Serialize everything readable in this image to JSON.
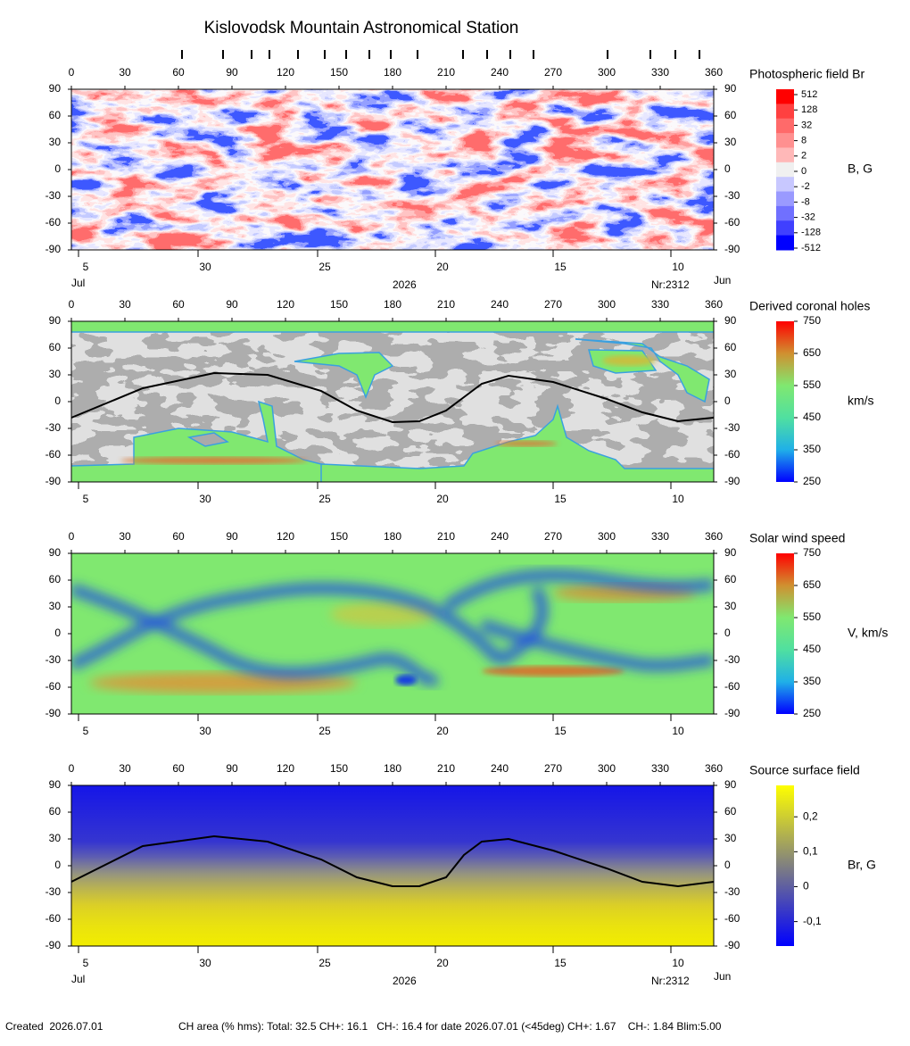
{
  "header": {
    "title": "Kislovodsk Mountain Astronomical Station"
  },
  "chart_data": [
    {
      "type": "heatmap",
      "title": "Photospheric field Br",
      "xlim": [
        0,
        360
      ],
      "xticks": [
        0,
        30,
        60,
        90,
        120,
        150,
        180,
        210,
        240,
        270,
        300,
        330,
        360
      ],
      "ylim": [
        -90,
        90
      ],
      "yticks": [
        90,
        60,
        30,
        0,
        -30,
        -60,
        -90
      ],
      "observation_ticks": [
        62,
        85,
        101,
        111,
        127,
        142,
        154,
        167,
        179,
        194,
        219.5,
        233,
        246,
        259,
        300.5,
        324.5,
        338.5,
        352
      ],
      "date_ticks": [
        {
          "value": 4,
          "label": "5"
        },
        {
          "value": 71,
          "label": "30"
        },
        {
          "value": 138,
          "label": "25"
        },
        {
          "value": 204,
          "label": "20"
        },
        {
          "value": 270,
          "label": "15"
        },
        {
          "value": 336,
          "label": "10"
        }
      ],
      "month_start": "Jul",
      "year": "2026",
      "rotation": "Nr:2312",
      "month_end": "Jun",
      "colorbar": {
        "label": "B, G",
        "levels": [
          512,
          128,
          32,
          8,
          2,
          0,
          -2,
          -8,
          -32,
          -128,
          -512
        ],
        "colors": [
          "#ff0000",
          "#ff4040",
          "#ff6a6a",
          "#ff9090",
          "#ffb8b8",
          "#f0f0f0",
          "#c8c8ff",
          "#9a9aff",
          "#7070ff",
          "#4040ff",
          "#0000ff"
        ]
      }
    },
    {
      "type": "heatmap",
      "title": "Derived coronal holes",
      "xlim": [
        0,
        360
      ],
      "xticks": [
        0,
        30,
        60,
        90,
        120,
        150,
        180,
        210,
        240,
        270,
        300,
        330,
        360
      ],
      "ylim": [
        -90,
        90
      ],
      "yticks": [
        90,
        60,
        30,
        0,
        -30,
        -60,
        -90
      ],
      "date_ticks": [
        {
          "value": 4,
          "label": "5"
        },
        {
          "value": 71,
          "label": "30"
        },
        {
          "value": 138,
          "label": "25"
        },
        {
          "value": 204,
          "label": "20"
        },
        {
          "value": 270,
          "label": "15"
        },
        {
          "value": 336,
          "label": "10"
        }
      ],
      "neutral_line": {
        "x": [
          0,
          40,
          80,
          110,
          140,
          160,
          180,
          195,
          210,
          220,
          230,
          245,
          270,
          300,
          320,
          340,
          360
        ],
        "y": [
          -18,
          15,
          32,
          30,
          12,
          -10,
          -23,
          -22,
          -10,
          5,
          20,
          29,
          22,
          3,
          -12,
          -22,
          -18
        ]
      },
      "colorbar": {
        "label": "km/s",
        "zlim": [
          250,
          750
        ],
        "ticks": [
          750,
          650,
          550,
          450,
          350,
          250
        ],
        "colors": [
          "#0000ff",
          "#20b0e8",
          "#50e0a0",
          "#80e870",
          "#d09030",
          "#ff0000"
        ]
      }
    },
    {
      "type": "heatmap",
      "title": "Solar wind speed",
      "xlim": [
        0,
        360
      ],
      "xticks": [
        0,
        30,
        60,
        90,
        120,
        150,
        180,
        210,
        240,
        270,
        300,
        330,
        360
      ],
      "ylim": [
        -90,
        90
      ],
      "yticks": [
        90,
        60,
        30,
        0,
        -30,
        -60,
        -90
      ],
      "date_ticks": [
        {
          "value": 4,
          "label": "5"
        },
        {
          "value": 71,
          "label": "30"
        },
        {
          "value": 138,
          "label": "25"
        },
        {
          "value": 204,
          "label": "20"
        },
        {
          "value": 270,
          "label": "15"
        },
        {
          "value": 336,
          "label": "10"
        }
      ],
      "colorbar": {
        "label": "V, km/s",
        "zlim": [
          250,
          750
        ],
        "ticks": [
          750,
          650,
          550,
          450,
          350,
          250
        ],
        "colors": [
          "#0000ff",
          "#20b0e8",
          "#50e0a0",
          "#80e870",
          "#d09030",
          "#ff0000"
        ]
      }
    },
    {
      "type": "heatmap",
      "title": "Source surface field",
      "xlim": [
        0,
        360
      ],
      "xticks": [
        0,
        30,
        60,
        90,
        120,
        150,
        180,
        210,
        240,
        270,
        300,
        330,
        360
      ],
      "ylim": [
        -90,
        90
      ],
      "yticks": [
        90,
        60,
        30,
        0,
        -30,
        -60,
        -90
      ],
      "date_ticks": [
        {
          "value": 4,
          "label": "5"
        },
        {
          "value": 71,
          "label": "30"
        },
        {
          "value": 138,
          "label": "25"
        },
        {
          "value": 204,
          "label": "20"
        },
        {
          "value": 270,
          "label": "15"
        },
        {
          "value": 336,
          "label": "10"
        }
      ],
      "month_start": "Jul",
      "year": "2026",
      "rotation": "Nr:2312",
      "month_end": "Jun",
      "neutral_line": {
        "x": [
          0,
          40,
          80,
          110,
          140,
          160,
          180,
          195,
          210,
          220,
          230,
          245,
          270,
          300,
          320,
          340,
          360
        ],
        "y": [
          -18,
          22,
          33,
          27,
          7,
          -13,
          -23,
          -23,
          -13,
          12,
          27,
          30,
          17,
          -3,
          -18,
          -23,
          -18
        ]
      },
      "colorbar": {
        "label": "Br, G",
        "zlim": [
          -0.17,
          0.29
        ],
        "ticks": [
          {
            "value": 0.2,
            "label": "0,2"
          },
          {
            "value": 0.1,
            "label": "0,1"
          },
          0,
          {
            "value": -0.1,
            "label": "-0,1"
          }
        ],
        "colors": [
          "#0000ff",
          "#808080",
          "#ffff00"
        ]
      }
    }
  ],
  "footer": {
    "created": "Created  2026.07.01",
    "stats": "CH area (% hms): Total: 32.5 CH+: 16.1   CH-: 16.4 for date 2026.07.01 (<45deg) CH+: 1.67    CH-: 1.84 Blim:5.00"
  }
}
